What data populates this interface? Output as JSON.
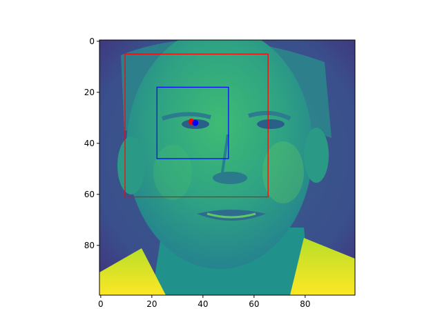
{
  "image": {
    "description_name": "grayscale face rendered with viridis colormap",
    "colormap": "viridis"
  },
  "chart_data": {
    "type": "image",
    "xlim": [
      -0.5,
      99.5
    ],
    "ylim": [
      99.5,
      -0.5
    ],
    "xticks": [
      0,
      20,
      40,
      60,
      80
    ],
    "yticks": [
      0,
      20,
      40,
      60,
      80
    ],
    "xtick_labels": [
      "0",
      "20",
      "40",
      "60",
      "80"
    ],
    "ytick_labels": [
      "0",
      "20",
      "40",
      "60",
      "80"
    ],
    "rectangles": [
      {
        "name": "face-box",
        "x": 9.5,
        "y": 5,
        "w": 56,
        "h": 56,
        "color": "#ff0000"
      },
      {
        "name": "eye-box",
        "x": 22,
        "y": 18,
        "w": 28,
        "h": 28,
        "color": "#0000ff"
      }
    ],
    "points": [
      {
        "name": "red-point",
        "x": 35.5,
        "y": 31.5,
        "color": "#ff0000"
      },
      {
        "name": "blue-point",
        "x": 37,
        "y": 32,
        "color": "#0000ff"
      }
    ]
  }
}
